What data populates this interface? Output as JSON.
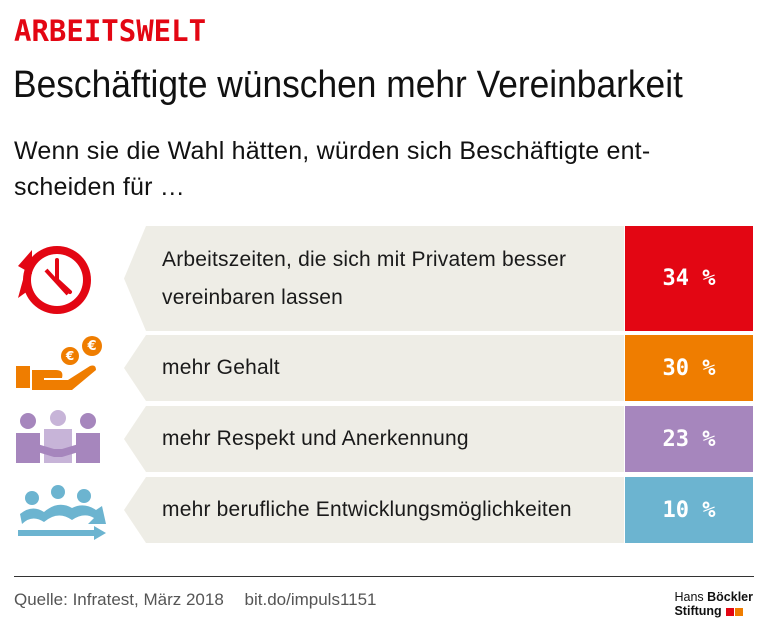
{
  "header": {
    "kicker": "ARBEITSWELT",
    "title": "Beschäftigte wünschen mehr Vereinbarkeit",
    "subtitle_line1": "Wenn sie die Wahl hätten, würden sich Beschäftigte ent-",
    "subtitle_line2": "scheiden für …"
  },
  "chart_data": {
    "type": "bar",
    "categories": [
      "Arbeitszeiten, die sich mit Privatem besser vereinbaren lassen",
      "mehr Gehalt",
      "mehr Respekt und Anerkennung",
      "mehr berufliche Entwicklungsmöglichkeiten"
    ],
    "values": [
      34,
      30,
      23,
      10
    ],
    "value_labels": [
      "34 %",
      "30 %",
      "23 %",
      "10 %"
    ],
    "unit": "%",
    "colors": [
      "#e30613",
      "#ef7d00",
      "#a686bd",
      "#6cb4d0"
    ],
    "icons": [
      "clock-icon",
      "money-hand-icon",
      "people-icon",
      "career-arrow-icon"
    ]
  },
  "footer": {
    "source": "Quelle: Infratest, März 2018",
    "link": "bit.do/impuls1151",
    "logo_line1_a": "Hans",
    "logo_line1_b": "Böckler",
    "logo_line2": "Stiftung"
  }
}
